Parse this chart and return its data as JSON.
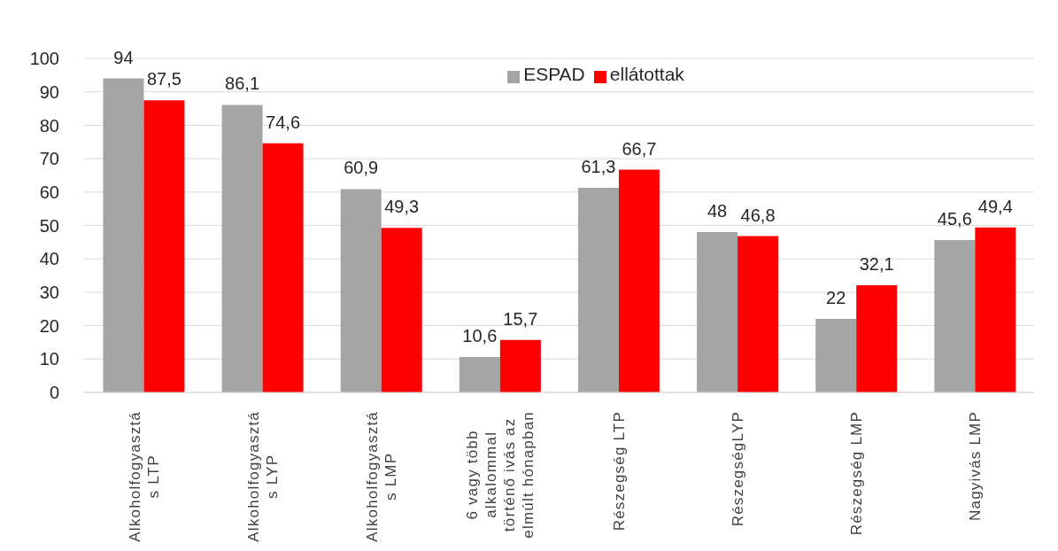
{
  "chart_data": {
    "type": "bar",
    "categories": [
      "Alkoholfogyasztás LTP",
      "Alkoholfogyasztás LYP",
      "Alkoholfogyasztás LMP",
      "6 vagy több alkalommal történő ivás az elmúlt hónapban",
      "Részegség LTP",
      "RészegségLYP",
      "Részegség LMP",
      "Nagyivás LMP"
    ],
    "series": [
      {
        "name": "ESPAD",
        "color": "#a5a5a5",
        "values": [
          94,
          86.1,
          60.9,
          10.6,
          61.3,
          48,
          22,
          45.6
        ],
        "value_labels": [
          "94",
          "86,1",
          "60,9",
          "10,6",
          "61,3",
          "48",
          "22",
          "45,6"
        ]
      },
      {
        "name": "ellátottak",
        "color": "#ff0000",
        "values": [
          87.5,
          74.6,
          49.3,
          15.7,
          66.7,
          46.8,
          32.1,
          49.4
        ],
        "value_labels": [
          "87,5",
          "74,6",
          "49,3",
          "15,7",
          "66,7",
          "46,8",
          "32,1",
          "49,4"
        ]
      }
    ],
    "ylim": [
      0,
      100
    ],
    "yticks": [
      0,
      10,
      20,
      30,
      40,
      50,
      60,
      70,
      80,
      90,
      100
    ],
    "grid": "y",
    "legend": "top"
  }
}
